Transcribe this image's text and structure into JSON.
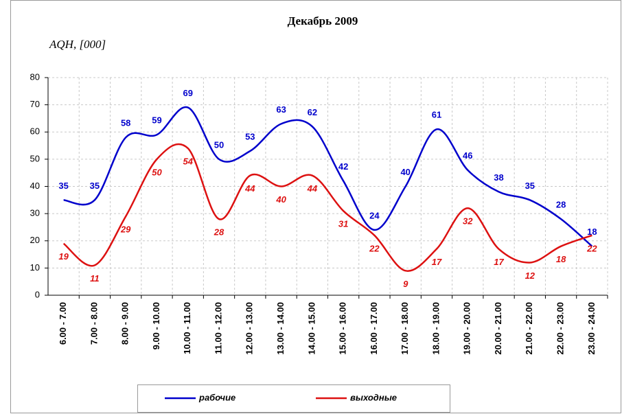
{
  "chart_data": {
    "type": "line",
    "title": "Декабрь 2009",
    "y_label": "AQH, [000]",
    "categories": [
      "6.00 - 7.00",
      "7.00 - 8.00",
      "8.00 - 9.00",
      "9.00 - 10.00",
      "10.00 - 11.00",
      "11.00 - 12.00",
      "12.00 - 13.00",
      "13.00 - 14.00",
      "14.00 - 15.00",
      "15.00 - 16.00",
      "16.00 - 17.00",
      "17.00 - 18.00",
      "18.00 - 19.00",
      "19.00 - 20.00",
      "20.00 - 21.00",
      "21.00 - 22.00",
      "22.00 - 23.00",
      "23.00 - 24.00"
    ],
    "series": [
      {
        "name": "рабочие",
        "color": "#0000cc",
        "values": [
          35,
          35,
          58,
          59,
          69,
          50,
          53,
          63,
          62,
          42,
          24,
          40,
          61,
          46,
          38,
          35,
          28,
          18
        ]
      },
      {
        "name": "выходные",
        "color": "#dd1111",
        "values": [
          19,
          11,
          29,
          50,
          54,
          28,
          44,
          40,
          44,
          31,
          22,
          9,
          17,
          32,
          17,
          12,
          18,
          22
        ]
      }
    ],
    "ylim": [
      0,
      80
    ],
    "yticks": [
      0,
      10,
      20,
      30,
      40,
      50,
      60,
      70,
      80
    ],
    "grid": true,
    "smooth": true,
    "legend": "bottom"
  }
}
